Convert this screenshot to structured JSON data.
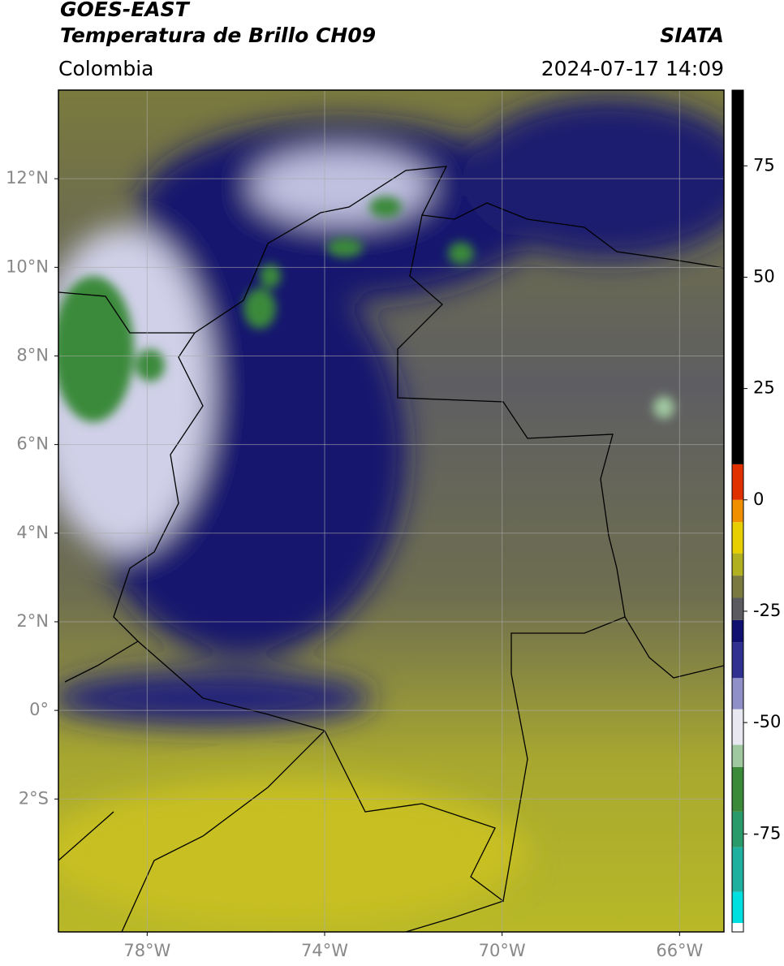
{
  "chart_data": {
    "type": "map",
    "title": "GOES-EAST",
    "subtitle": "Temperatura de Brillo CH09",
    "source": "SIATA",
    "region": "Colombia",
    "datetime": "2024-07-17 14:09",
    "xlim": [
      -80,
      -65
    ],
    "ylim": [
      -5,
      14
    ],
    "xticks": [
      {
        "value": -78,
        "label": "78°W"
      },
      {
        "value": -74,
        "label": "74°W"
      },
      {
        "value": -70,
        "label": "70°W"
      },
      {
        "value": -66,
        "label": "66°W"
      }
    ],
    "yticks": [
      {
        "value": 12,
        "label": "12°N"
      },
      {
        "value": 10,
        "label": "10°N"
      },
      {
        "value": 8,
        "label": "8°N"
      },
      {
        "value": 6,
        "label": "6°N"
      },
      {
        "value": 4,
        "label": "4°N"
      },
      {
        "value": 2,
        "label": "2°N"
      },
      {
        "value": 0,
        "label": "0°"
      },
      {
        "value": -2,
        "label": "2°S"
      }
    ],
    "grid": true,
    "colorbar": {
      "lim": [
        -97,
        92
      ],
      "ticks": [
        75,
        50,
        25,
        0,
        -25,
        -50,
        -75
      ],
      "levels": [
        -97,
        -95,
        -88,
        -78,
        -70,
        -60,
        -55,
        -47,
        -40,
        -32,
        -27,
        -22,
        -17,
        -12,
        -5,
        0,
        8,
        92
      ],
      "colors": [
        "#ffffff",
        "#00e0e0",
        "#20b0a0",
        "#2a9a6a",
        "#3a8a3a",
        "#a0c8a0",
        "#e8e8f0",
        "#9090c8",
        "#303090",
        "#101070",
        "#5a5a60",
        "#7a7a40",
        "#b0b020",
        "#e8d000",
        "#f09000",
        "#e03000",
        "#000000"
      ]
    }
  }
}
